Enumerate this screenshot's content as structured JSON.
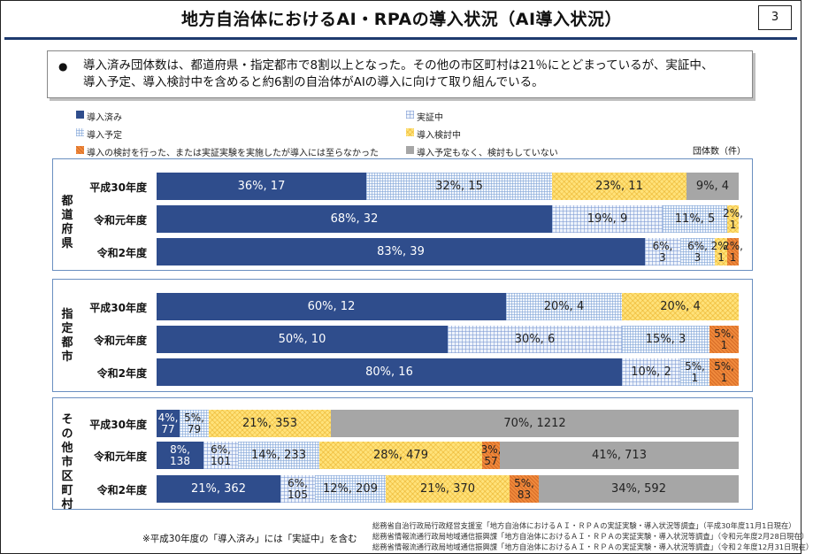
{
  "title": "地方自治体におけるAI・RPAの導入状況（AI導入状況）",
  "page_number": "3",
  "summary": {
    "bullet": "●",
    "line1": "導入済み団体数は、都道府県・指定都市で8割以上となった。その他の市区町村は21％にとどまっているが、実証中、",
    "line2": "導入予定、導入検討中を含めると約6割の自治体がAIの導入に向けて取り組んでいる。"
  },
  "legend": [
    {
      "label": "導入済み",
      "color": "#2f4d8c"
    },
    {
      "label": "実証中",
      "color": "#9db5e0"
    },
    {
      "label": "導入予定",
      "color": "#c9d9f2"
    },
    {
      "label": "導入検討中",
      "color": "#ffd966"
    },
    {
      "label": "導入の検討を行った、または実証実験を実施したが導入には至らなかった",
      "color": "#f08a3c"
    },
    {
      "label": "導入予定もなく、検討もしていない",
      "color": "#a6a6a6"
    }
  ],
  "unit_label": "団体数（件）",
  "chart_data": {
    "type": "bar",
    "orientation": "horizontal",
    "stacked": "100%",
    "categories_order": [
      "導入済み",
      "実証中",
      "導入予定",
      "導入検討中",
      "導入の検討を行った、または実証実験を実施したが導入には至らなかった",
      "導入予定もなく、検討もしていない"
    ],
    "groups": [
      {
        "name": "都道府県",
        "rows": [
          {
            "label": "平成30年度",
            "segments": [
              {
                "cat": 0,
                "pct": 36,
                "count": 17,
                "text": "36%, 17"
              },
              {
                "cat": 2,
                "pct": 32,
                "count": 15,
                "text": "32%, 15"
              },
              {
                "cat": 3,
                "pct": 23,
                "count": 11,
                "text": "23%, 11"
              },
              {
                "cat": 5,
                "pct": 9,
                "count": 4,
                "text": "9%, 4"
              }
            ]
          },
          {
            "label": "令和元年度",
            "segments": [
              {
                "cat": 0,
                "pct": 68,
                "count": 32,
                "text": "68%, 32"
              },
              {
                "cat": 1,
                "pct": 19,
                "count": 9,
                "text": "19%, 9"
              },
              {
                "cat": 2,
                "pct": 11,
                "count": 5,
                "text": "11%, 5"
              },
              {
                "cat": 3,
                "pct": 2,
                "count": 1,
                "text": "2%, 1"
              }
            ]
          },
          {
            "label": "令和2年度",
            "segments": [
              {
                "cat": 0,
                "pct": 83,
                "count": 39,
                "text": "83%, 39"
              },
              {
                "cat": 1,
                "pct": 6,
                "count": 3,
                "text": "6%, 3"
              },
              {
                "cat": 2,
                "pct": 6,
                "count": 3,
                "text": "6%, 3"
              },
              {
                "cat": 3,
                "pct": 2,
                "count": 1,
                "text": "2%, 1"
              },
              {
                "cat": 4,
                "pct": 2,
                "count": 1,
                "text": "2%, 1"
              }
            ]
          }
        ]
      },
      {
        "name": "指定都市",
        "rows": [
          {
            "label": "平成30年度",
            "segments": [
              {
                "cat": 0,
                "pct": 60,
                "count": 12,
                "text": "60%, 12"
              },
              {
                "cat": 2,
                "pct": 20,
                "count": 4,
                "text": "20%, 4"
              },
              {
                "cat": 3,
                "pct": 20,
                "count": 4,
                "text": "20%, 4"
              }
            ]
          },
          {
            "label": "令和元年度",
            "segments": [
              {
                "cat": 0,
                "pct": 50,
                "count": 10,
                "text": "50%, 10"
              },
              {
                "cat": 1,
                "pct": 30,
                "count": 6,
                "text": "30%, 6"
              },
              {
                "cat": 2,
                "pct": 15,
                "count": 3,
                "text": "15%, 3"
              },
              {
                "cat": 4,
                "pct": 5,
                "count": 1,
                "text": "5%, 1"
              }
            ]
          },
          {
            "label": "令和2年度",
            "segments": [
              {
                "cat": 0,
                "pct": 80,
                "count": 16,
                "text": "80%, 16"
              },
              {
                "cat": 1,
                "pct": 10,
                "count": 2,
                "text": "10%, 2"
              },
              {
                "cat": 2,
                "pct": 5,
                "count": 1,
                "text": "5%, 1"
              },
              {
                "cat": 4,
                "pct": 5,
                "count": 1,
                "text": "5%, 1"
              }
            ]
          }
        ]
      },
      {
        "name": "その他市区町村",
        "rows": [
          {
            "label": "平成30年度",
            "segments": [
              {
                "cat": 0,
                "pct": 4,
                "count": 77,
                "text": "4%, 77"
              },
              {
                "cat": 2,
                "pct": 5,
                "count": 79,
                "text": "5%, 79"
              },
              {
                "cat": 3,
                "pct": 21,
                "count": 353,
                "text": "21%, 353"
              },
              {
                "cat": 5,
                "pct": 70,
                "count": 1212,
                "text": "70%, 1212"
              }
            ]
          },
          {
            "label": "令和元年度",
            "segments": [
              {
                "cat": 0,
                "pct": 8,
                "count": 138,
                "text": "8%, 138"
              },
              {
                "cat": 1,
                "pct": 6,
                "count": 101,
                "text": "6%, 101"
              },
              {
                "cat": 2,
                "pct": 14,
                "count": 233,
                "text": "14%, 233"
              },
              {
                "cat": 3,
                "pct": 28,
                "count": 479,
                "text": "28%, 479"
              },
              {
                "cat": 4,
                "pct": 3,
                "count": 57,
                "text": "3%, 57"
              },
              {
                "cat": 5,
                "pct": 41,
                "count": 713,
                "text": "41%, 713"
              }
            ]
          },
          {
            "label": "令和2年度",
            "segments": [
              {
                "cat": 0,
                "pct": 21,
                "count": 362,
                "text": "21%, 362"
              },
              {
                "cat": 1,
                "pct": 6,
                "count": 105,
                "text": "6%, 105"
              },
              {
                "cat": 2,
                "pct": 12,
                "count": 209,
                "text": "12%, 209"
              },
              {
                "cat": 3,
                "pct": 21,
                "count": 370,
                "text": "21%, 370"
              },
              {
                "cat": 4,
                "pct": 5,
                "count": 83,
                "text": "5%, 83"
              },
              {
                "cat": 5,
                "pct": 34,
                "count": 592,
                "text": "34%, 592"
              }
            ]
          }
        ]
      }
    ]
  },
  "note": "※平成30年度の「導入済み」には「実証中」を含む",
  "sources": [
    "総務省自治行政局行政経営支援室「地方自治体におけるＡＩ・ＲＰＡの実証実験・導入状況等調査」（平成30年度11月1日現在）",
    "総務省情報流通行政局地域通信振興課「地方自治体におけるＡＩ・ＲＰＡの実証実験・導入状況等調査」（令和元年度2月28日現在）",
    "総務省情報流通行政局地域通信振興課「地方自治体におけるＡＩ・ＲＰＡの実証実験・導入状況等調査」（令和２年度12月31日現在）"
  ]
}
